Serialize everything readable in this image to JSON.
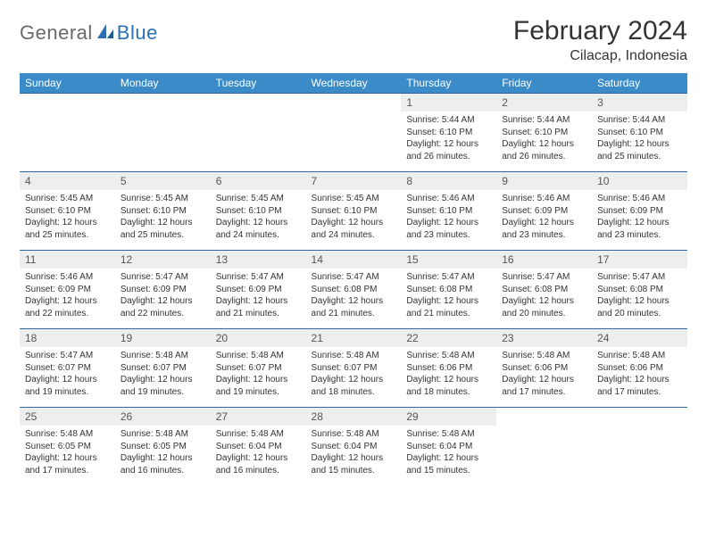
{
  "brand": {
    "name1": "General",
    "name2": "Blue"
  },
  "title": "February 2024",
  "location": "Cilacap, Indonesia",
  "colors": {
    "header_bg": "#3b8bc8",
    "header_text": "#ffffff",
    "daynum_bg": "#eeeeee",
    "row_border": "#336699",
    "logo_gray": "#6a6a6a",
    "logo_blue": "#2b6fb5"
  },
  "calendar": {
    "type": "table",
    "columns": [
      "Sunday",
      "Monday",
      "Tuesday",
      "Wednesday",
      "Thursday",
      "Friday",
      "Saturday"
    ],
    "weeks": [
      [
        null,
        null,
        null,
        null,
        {
          "n": "1",
          "sr": "5:44 AM",
          "ss": "6:10 PM",
          "dl": "12 hours and 26 minutes."
        },
        {
          "n": "2",
          "sr": "5:44 AM",
          "ss": "6:10 PM",
          "dl": "12 hours and 26 minutes."
        },
        {
          "n": "3",
          "sr": "5:44 AM",
          "ss": "6:10 PM",
          "dl": "12 hours and 25 minutes."
        }
      ],
      [
        {
          "n": "4",
          "sr": "5:45 AM",
          "ss": "6:10 PM",
          "dl": "12 hours and 25 minutes."
        },
        {
          "n": "5",
          "sr": "5:45 AM",
          "ss": "6:10 PM",
          "dl": "12 hours and 25 minutes."
        },
        {
          "n": "6",
          "sr": "5:45 AM",
          "ss": "6:10 PM",
          "dl": "12 hours and 24 minutes."
        },
        {
          "n": "7",
          "sr": "5:45 AM",
          "ss": "6:10 PM",
          "dl": "12 hours and 24 minutes."
        },
        {
          "n": "8",
          "sr": "5:46 AM",
          "ss": "6:10 PM",
          "dl": "12 hours and 23 minutes."
        },
        {
          "n": "9",
          "sr": "5:46 AM",
          "ss": "6:09 PM",
          "dl": "12 hours and 23 minutes."
        },
        {
          "n": "10",
          "sr": "5:46 AM",
          "ss": "6:09 PM",
          "dl": "12 hours and 23 minutes."
        }
      ],
      [
        {
          "n": "11",
          "sr": "5:46 AM",
          "ss": "6:09 PM",
          "dl": "12 hours and 22 minutes."
        },
        {
          "n": "12",
          "sr": "5:47 AM",
          "ss": "6:09 PM",
          "dl": "12 hours and 22 minutes."
        },
        {
          "n": "13",
          "sr": "5:47 AM",
          "ss": "6:09 PM",
          "dl": "12 hours and 21 minutes."
        },
        {
          "n": "14",
          "sr": "5:47 AM",
          "ss": "6:08 PM",
          "dl": "12 hours and 21 minutes."
        },
        {
          "n": "15",
          "sr": "5:47 AM",
          "ss": "6:08 PM",
          "dl": "12 hours and 21 minutes."
        },
        {
          "n": "16",
          "sr": "5:47 AM",
          "ss": "6:08 PM",
          "dl": "12 hours and 20 minutes."
        },
        {
          "n": "17",
          "sr": "5:47 AM",
          "ss": "6:08 PM",
          "dl": "12 hours and 20 minutes."
        }
      ],
      [
        {
          "n": "18",
          "sr": "5:47 AM",
          "ss": "6:07 PM",
          "dl": "12 hours and 19 minutes."
        },
        {
          "n": "19",
          "sr": "5:48 AM",
          "ss": "6:07 PM",
          "dl": "12 hours and 19 minutes."
        },
        {
          "n": "20",
          "sr": "5:48 AM",
          "ss": "6:07 PM",
          "dl": "12 hours and 19 minutes."
        },
        {
          "n": "21",
          "sr": "5:48 AM",
          "ss": "6:07 PM",
          "dl": "12 hours and 18 minutes."
        },
        {
          "n": "22",
          "sr": "5:48 AM",
          "ss": "6:06 PM",
          "dl": "12 hours and 18 minutes."
        },
        {
          "n": "23",
          "sr": "5:48 AM",
          "ss": "6:06 PM",
          "dl": "12 hours and 17 minutes."
        },
        {
          "n": "24",
          "sr": "5:48 AM",
          "ss": "6:06 PM",
          "dl": "12 hours and 17 minutes."
        }
      ],
      [
        {
          "n": "25",
          "sr": "5:48 AM",
          "ss": "6:05 PM",
          "dl": "12 hours and 17 minutes."
        },
        {
          "n": "26",
          "sr": "5:48 AM",
          "ss": "6:05 PM",
          "dl": "12 hours and 16 minutes."
        },
        {
          "n": "27",
          "sr": "5:48 AM",
          "ss": "6:04 PM",
          "dl": "12 hours and 16 minutes."
        },
        {
          "n": "28",
          "sr": "5:48 AM",
          "ss": "6:04 PM",
          "dl": "12 hours and 15 minutes."
        },
        {
          "n": "29",
          "sr": "5:48 AM",
          "ss": "6:04 PM",
          "dl": "12 hours and 15 minutes."
        },
        null,
        null
      ]
    ],
    "labels": {
      "sunrise": "Sunrise: ",
      "sunset": "Sunset: ",
      "daylight": "Daylight: "
    },
    "fontsize": {
      "header": 12,
      "daynum": 12,
      "content": 10
    }
  }
}
